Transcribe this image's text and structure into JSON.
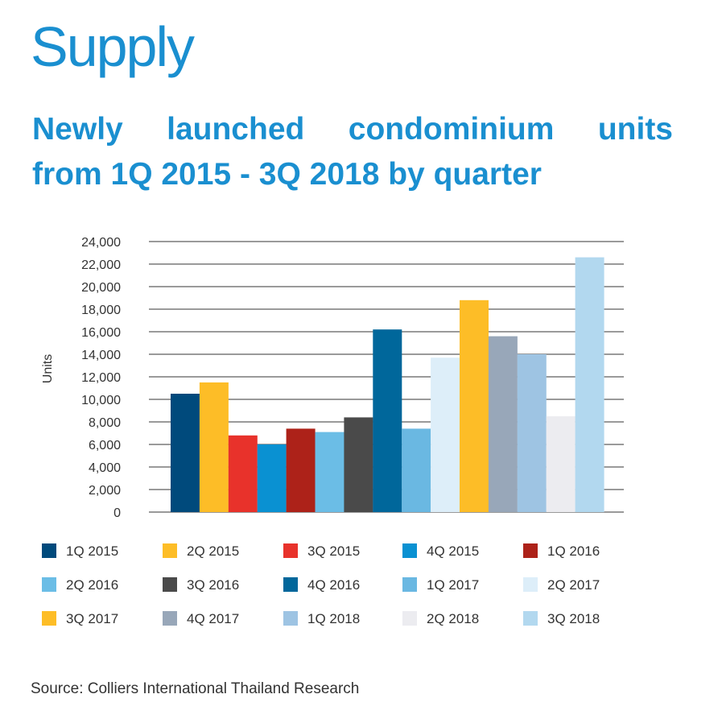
{
  "header": {
    "title": "Supply",
    "subtitle_line1": "Newly launched condominium units",
    "subtitle_line2": "from 1Q 2015 - 3Q 2018 by quarter"
  },
  "source": "Source: Colliers International Thailand Research",
  "chart_data": {
    "type": "bar",
    "title": "Newly launched condominium units from 1Q 2015 - 3Q 2018 by quarter",
    "xlabel": "",
    "ylabel": "Units",
    "ylim": [
      0,
      24000
    ],
    "yticks": [
      0,
      2000,
      4000,
      6000,
      8000,
      10000,
      12000,
      14000,
      16000,
      18000,
      20000,
      22000,
      24000
    ],
    "ytick_labels": [
      "0",
      "2,000",
      "4,000",
      "6,000",
      "8,000",
      "10,000",
      "12,000",
      "14,000",
      "16,000",
      "18,000",
      "20,000",
      "22,000",
      "24,000"
    ],
    "grid": true,
    "legend_position": "bottom",
    "categories": [
      "1Q 2015",
      "2Q 2015",
      "3Q 2015",
      "4Q 2015",
      "1Q 2016",
      "2Q 2016",
      "3Q 2016",
      "4Q 2016",
      "1Q 2017",
      "2Q 2017",
      "3Q 2017",
      "4Q 2017",
      "1Q 2018",
      "2Q 2018",
      "3Q 2018"
    ],
    "values": [
      10500,
      11500,
      6800,
      6000,
      7400,
      7100,
      8400,
      16200,
      7400,
      13700,
      18800,
      15600,
      14000,
      8500,
      22600
    ],
    "colors": [
      "#004a7c",
      "#fdbd27",
      "#e8322b",
      "#0a91d2",
      "#ad2219",
      "#6bbde6",
      "#4a4a4a",
      "#00679b",
      "#6ab8e2",
      "#ddeef9",
      "#fdbd27",
      "#98a7b9",
      "#9ec4e3",
      "#ececf0",
      "#b2d8ef"
    ]
  }
}
